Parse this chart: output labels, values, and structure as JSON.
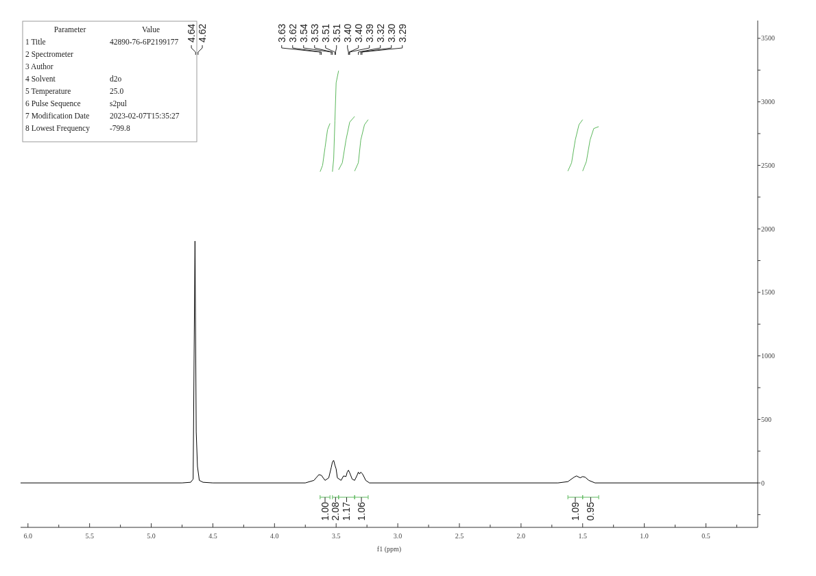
{
  "chart_data": {
    "type": "line",
    "xlabel": "f1 (ppm)",
    "xlim": [
      6.06,
      0.08
    ],
    "xticks": [
      {
        "value": 6,
        "label": "6.0"
      },
      {
        "value": 5.75,
        "label": null
      },
      {
        "value": 5.5,
        "label": "5.5"
      },
      {
        "value": 5.25,
        "label": null
      },
      {
        "value": 5,
        "label": "5.0"
      },
      {
        "value": 4.75,
        "label": null
      },
      {
        "value": 4.5,
        "label": "4.5"
      },
      {
        "value": 4.25,
        "label": null
      },
      {
        "value": 4,
        "label": "4.0"
      },
      {
        "value": 3.75,
        "label": null
      },
      {
        "value": 3.5,
        "label": "3.5"
      },
      {
        "value": 3.25,
        "label": null
      },
      {
        "value": 3,
        "label": "3.0"
      },
      {
        "value": 2.75,
        "label": null
      },
      {
        "value": 2.5,
        "label": "2.5"
      },
      {
        "value": 2.25,
        "label": null
      },
      {
        "value": 2,
        "label": "2.0"
      },
      {
        "value": 1.75,
        "label": null
      },
      {
        "value": 1.5,
        "label": "1.5"
      },
      {
        "value": 1.25,
        "label": null
      },
      {
        "value": 1,
        "label": "1.0"
      },
      {
        "value": 0.75,
        "label": null
      },
      {
        "value": 0.5,
        "label": "0.5"
      },
      {
        "value": 0.25,
        "label": null
      }
    ],
    "ylim": [
      -350,
      3640
    ],
    "yticks": [
      {
        "value": -250,
        "label": null
      },
      0,
      {
        "value": 250,
        "label": null
      },
      500,
      {
        "value": 750,
        "label": null
      },
      1000,
      {
        "value": 1250,
        "label": null
      },
      1500,
      {
        "value": 1750,
        "label": null
      },
      2000,
      {
        "value": 2250,
        "label": null
      },
      2500,
      {
        "value": 2750,
        "label": null
      },
      3000,
      {
        "value": 3250,
        "label": null
      },
      3500
    ],
    "series": [
      {
        "color": "#000000",
        "x": [
          6.06,
          4.75,
          4.68,
          4.66,
          4.645,
          4.635,
          4.625,
          4.61,
          4.58,
          4.5,
          3.75,
          3.68,
          3.64,
          3.62,
          3.59,
          3.56,
          3.54,
          3.53,
          3.52,
          3.51,
          3.5,
          3.49,
          3.46,
          3.44,
          3.42,
          3.41,
          3.4,
          3.39,
          3.37,
          3.35,
          3.33,
          3.32,
          3.31,
          3.3,
          3.29,
          3.28,
          3.26,
          3.23,
          1.7,
          1.62,
          1.57,
          1.55,
          1.52,
          1.5,
          1.48,
          1.45,
          1.4,
          0.08
        ],
        "values": [
          0,
          0,
          5,
          30,
          1904,
          400,
          130,
          20,
          5,
          0,
          0,
          20,
          65,
          60,
          20,
          40,
          120,
          165,
          178,
          140,
          110,
          40,
          20,
          55,
          50,
          85,
          100,
          80,
          30,
          20,
          60,
          85,
          70,
          85,
          75,
          60,
          20,
          0,
          0,
          10,
          45,
          55,
          40,
          50,
          45,
          20,
          0,
          0
        ]
      },
      {
        "color": "#5cb85c",
        "x": [
          3.63,
          3.61,
          3.59,
          3.57,
          3.55
        ],
        "values": [
          2450,
          2500,
          2640,
          2780,
          2830
        ]
      },
      {
        "color": "#5cb85c",
        "x": [
          3.53,
          3.52,
          3.51,
          3.5,
          3.48
        ],
        "values": [
          2450,
          2550,
          2850,
          3150,
          3245
        ]
      },
      {
        "color": "#5cb85c",
        "x": [
          3.48,
          3.45,
          3.42,
          3.39,
          3.35
        ],
        "values": [
          2465,
          2520,
          2700,
          2840,
          2885
        ]
      },
      {
        "color": "#5cb85c",
        "x": [
          3.35,
          3.32,
          3.3,
          3.27,
          3.24
        ],
        "values": [
          2455,
          2520,
          2700,
          2820,
          2860
        ]
      },
      {
        "color": "#5cb85c",
        "x": [
          1.62,
          1.59,
          1.56,
          1.53,
          1.5
        ],
        "values": [
          2455,
          2520,
          2700,
          2820,
          2860
        ]
      },
      {
        "color": "#5cb85c",
        "x": [
          1.5,
          1.47,
          1.44,
          1.41,
          1.37
        ],
        "values": [
          2455,
          2530,
          2700,
          2790,
          2805
        ]
      }
    ],
    "annotations": [
      "Parameter\tValue",
      "1 Title\t42890-76-6P2199177",
      "2 Spectrometer",
      "3 Author",
      "4 Solvent\td2o",
      "5 Temperature\t25.0",
      "6 Pulse Sequence\ts2pul",
      "7 Modification Date\t2023-02-07T15:35:27",
      "8 Lowest Frequency\t-799.8",
      {
        "text": "4.64",
        "x": 4.64
      },
      {
        "text": "4.62",
        "x": 4.62
      },
      {
        "text": "3.63",
        "x": 3.63
      },
      {
        "text": "3.62",
        "x": 3.62
      },
      {
        "text": "3.54",
        "x": 3.54
      },
      {
        "text": "3.53",
        "x": 3.53
      },
      {
        "text": "3.51",
        "x": 3.51
      },
      {
        "text": "3.51",
        "x": 3.505
      },
      {
        "text": "3.40",
        "x": 3.4
      },
      {
        "text": "3.40",
        "x": 3.395
      },
      {
        "text": "3.39",
        "x": 3.39
      },
      {
        "text": "3.32",
        "x": 3.32
      },
      {
        "text": "3.30",
        "x": 3.3
      },
      {
        "text": "3.29",
        "x": 3.29
      },
      "1.00",
      "2.08",
      "1.17",
      "1.06",
      "1.09",
      "0.95"
    ]
  }
}
